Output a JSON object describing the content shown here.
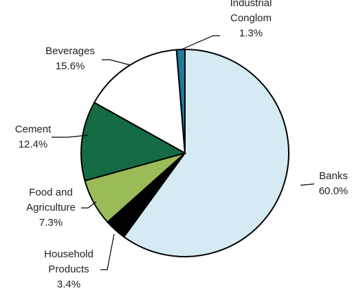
{
  "chart_data": {
    "type": "pie",
    "title": "",
    "slices": [
      {
        "label_lines": [
          "Banks"
        ],
        "value_label": "60.0%",
        "value": 60.0,
        "color": "#D5EAF2"
      },
      {
        "label_lines": [
          "Household",
          "Products"
        ],
        "value_label": "3.4%",
        "value": 3.4,
        "color": "#000000"
      },
      {
        "label_lines": [
          "Food and",
          "Agriculture"
        ],
        "value_label": "7.3%",
        "value": 7.3,
        "color": "#9BBB59"
      },
      {
        "label_lines": [
          "Cement"
        ],
        "value_label": "12.4%",
        "value": 12.4,
        "color": "#146B44"
      },
      {
        "label_lines": [
          "Beverages"
        ],
        "value_label": "15.6%",
        "value": 15.6,
        "color": "#FFFFFF"
      },
      {
        "label_lines": [
          "Industrial",
          "Conglom"
        ],
        "value_label": "1.3%",
        "value": 1.3,
        "color": "#1D7B9E"
      }
    ],
    "legend": "none",
    "data_labels": "outside-with-leader-lines"
  }
}
